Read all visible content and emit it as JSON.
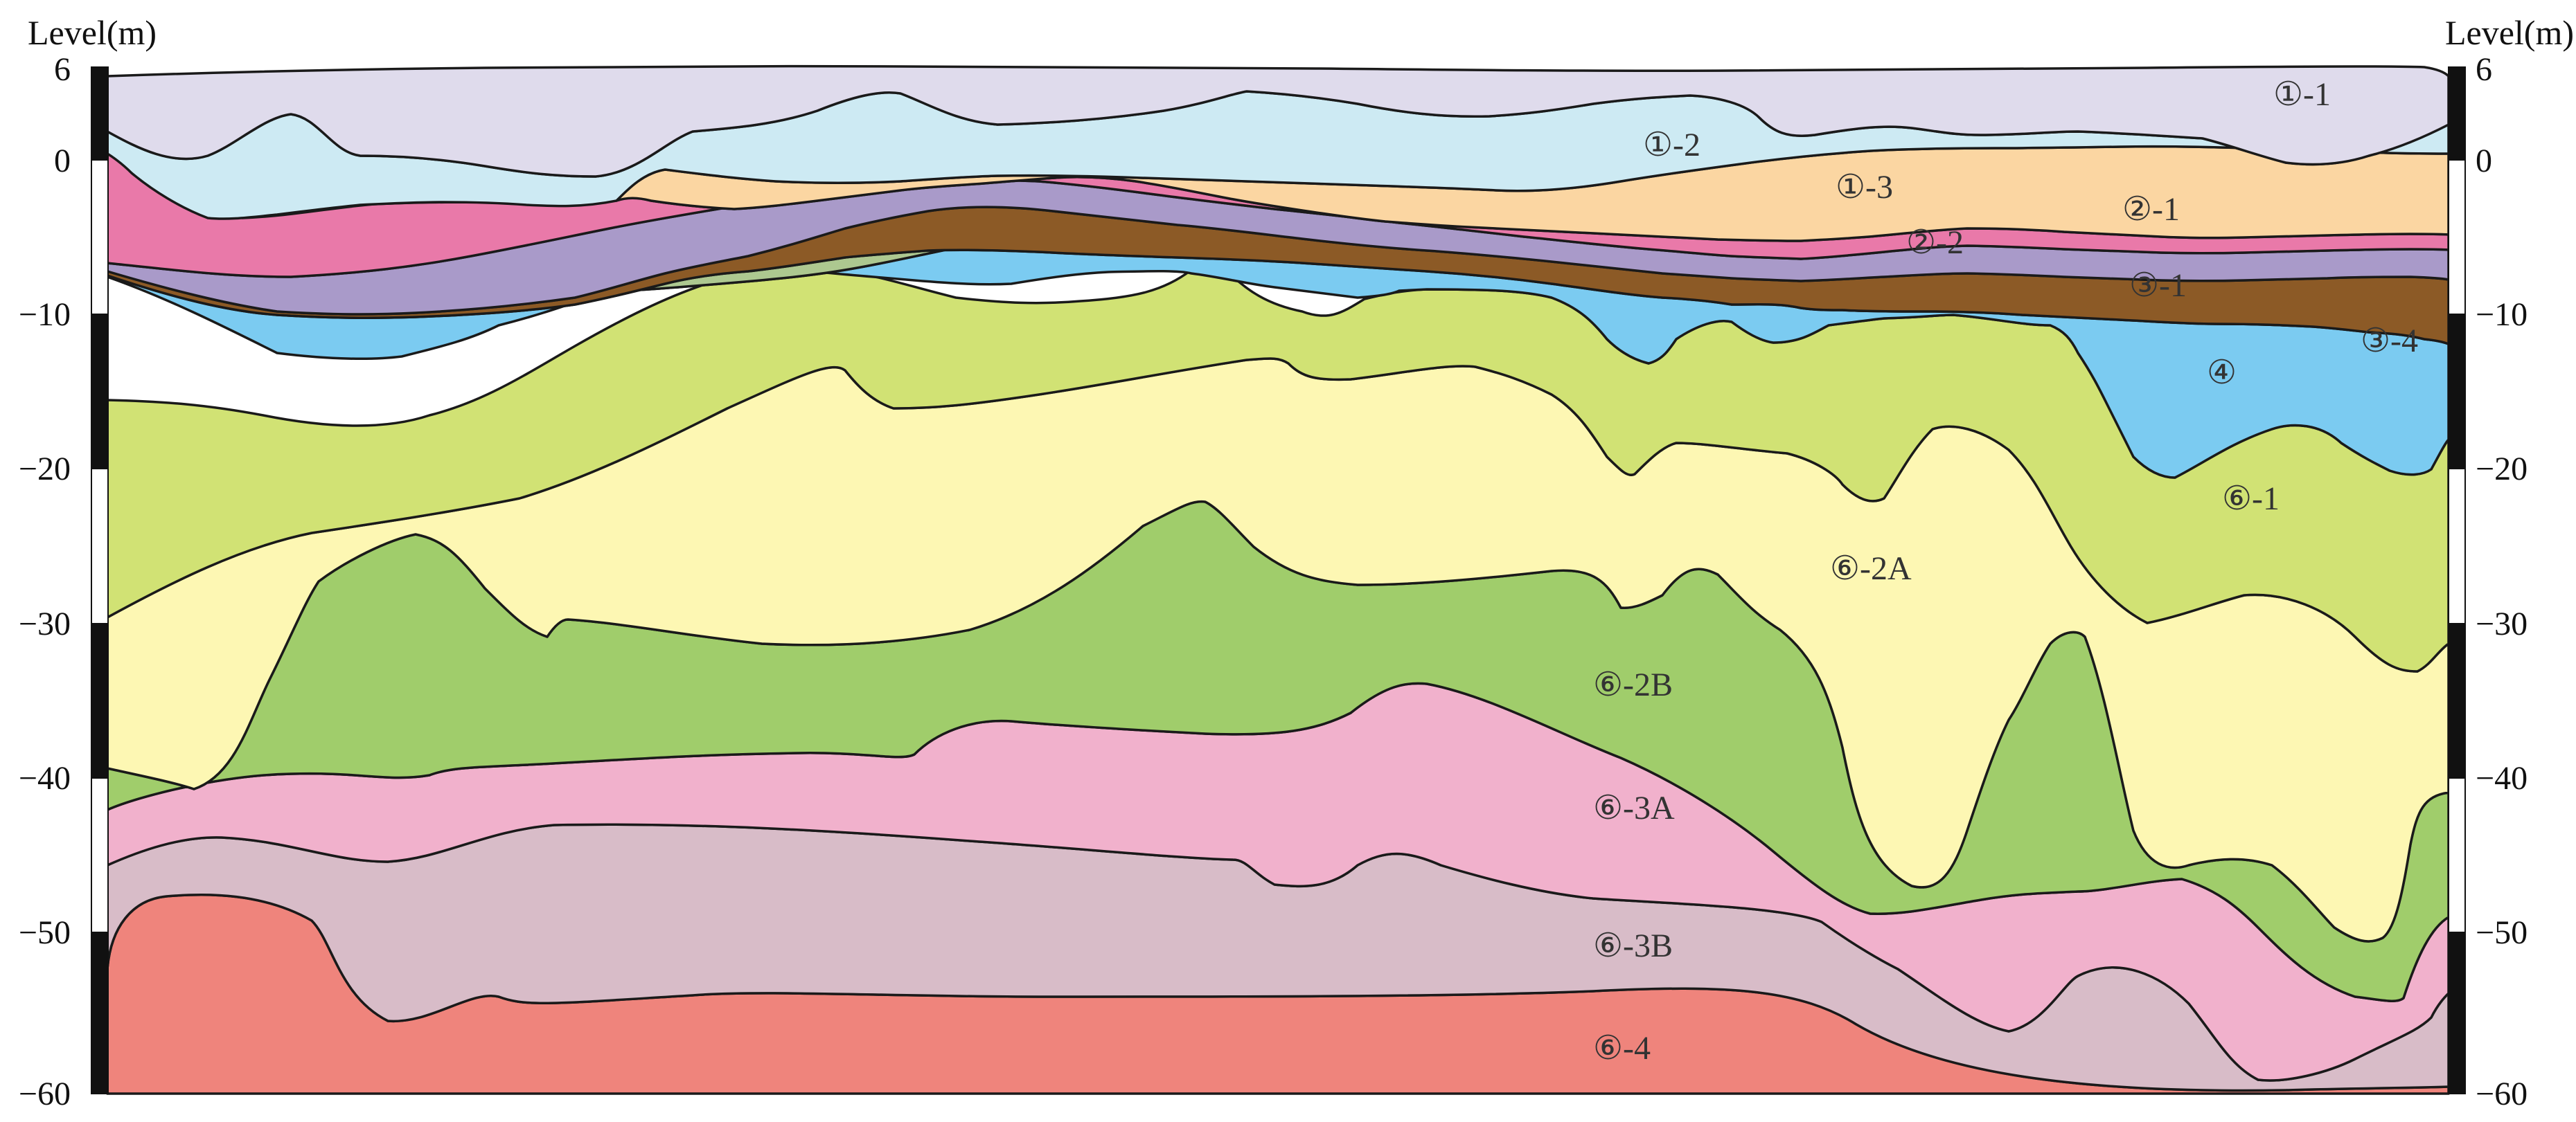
{
  "axes": {
    "left_title": "Level(m)",
    "right_title": "Level(m)",
    "ticks": [
      {
        "value": 6,
        "label": "6"
      },
      {
        "value": 0,
        "label": "0"
      },
      {
        "value": -10,
        "label": "−10"
      },
      {
        "value": -20,
        "label": "−20"
      },
      {
        "value": -30,
        "label": "−30"
      },
      {
        "value": -40,
        "label": "−40"
      },
      {
        "value": -50,
        "label": "−50"
      },
      {
        "value": -60,
        "label": "−60"
      }
    ],
    "range": [
      -60,
      6
    ]
  },
  "layers": [
    {
      "id": "l6-4",
      "label": "⑥-4",
      "color": "#ef847c"
    },
    {
      "id": "l6-3B",
      "label": "⑥-3B",
      "color": "#d8bcc8"
    },
    {
      "id": "l6-3A",
      "label": "⑥-3A",
      "color": "#f1b1cc"
    },
    {
      "id": "l6-2B",
      "label": "⑥-2B",
      "color": "#a0cd6b"
    },
    {
      "id": "l6-2A",
      "label": "⑥-2A",
      "color": "#fdf7b3"
    },
    {
      "id": "l6-1",
      "label": "⑥-1",
      "color": "#d1e274"
    },
    {
      "id": "l4",
      "label": "④",
      "color": "#7bcbf1"
    },
    {
      "id": "l3-4",
      "label": "③-4",
      "color": "#adc890"
    },
    {
      "id": "l3-1",
      "label": "③-1",
      "color": "#8c5a26"
    },
    {
      "id": "l2-2",
      "label": "②-2",
      "color": "#a99ac9"
    },
    {
      "id": "l2-1",
      "label": "②-1",
      "color": "#e979a9"
    },
    {
      "id": "l1-3",
      "label": "①-3",
      "color": "#fbd6a2"
    },
    {
      "id": "l1-2",
      "label": "①-2",
      "color": "#cdeaf3"
    },
    {
      "id": "l1-1",
      "label": "①-1",
      "color": "#dfdbec"
    }
  ]
}
